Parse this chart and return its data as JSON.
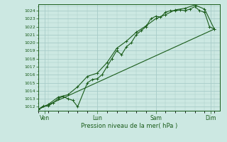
{
  "xlabel": "Pression niveau de la mer( hPa )",
  "bg_color": "#cce8e2",
  "line_color": "#1a5c1a",
  "grid_color": "#a8ccc8",
  "ylim": [
    1011.5,
    1024.8
  ],
  "xlim": [
    0,
    9.3
  ],
  "day_labels": [
    "Ven",
    "Lun",
    "Sam",
    "Dim"
  ],
  "day_positions": [
    0.3,
    3.0,
    6.0,
    8.8
  ],
  "series1_x": [
    0.0,
    0.25,
    0.5,
    0.75,
    1.0,
    1.25,
    1.5,
    1.75,
    2.0,
    2.5,
    2.75,
    3.0,
    3.25,
    3.5,
    3.75,
    4.0,
    4.25,
    4.5,
    4.75,
    5.0,
    5.25,
    5.5,
    5.75,
    6.0,
    6.25,
    6.5,
    6.75,
    7.0,
    7.25,
    7.5,
    7.75,
    8.0,
    8.25,
    8.5,
    8.75,
    9.0
  ],
  "series1_y": [
    1011.7,
    1012.1,
    1012.1,
    1012.5,
    1013.0,
    1013.3,
    1013.0,
    1012.8,
    1012.0,
    1015.0,
    1015.4,
    1015.5,
    1016.0,
    1017.0,
    1018.0,
    1019.0,
    1018.5,
    1019.5,
    1020.0,
    1021.0,
    1021.5,
    1022.0,
    1023.0,
    1023.3,
    1023.2,
    1023.8,
    1024.0,
    1024.0,
    1024.1,
    1024.0,
    1024.2,
    1024.5,
    1024.0,
    1023.8,
    1022.0,
    1021.7
  ],
  "series2_x": [
    0.0,
    0.5,
    1.0,
    1.5,
    2.0,
    2.5,
    3.0,
    3.5,
    4.0,
    4.5,
    5.0,
    5.5,
    6.0,
    6.5,
    7.0,
    7.5,
    8.0,
    8.5,
    9.0
  ],
  "series2_y": [
    1011.7,
    1012.3,
    1013.2,
    1013.5,
    1014.5,
    1015.8,
    1016.2,
    1017.5,
    1019.3,
    1020.2,
    1021.3,
    1022.1,
    1023.0,
    1023.5,
    1024.1,
    1024.3,
    1024.7,
    1024.2,
    1021.7
  ],
  "trend_x": [
    0.0,
    9.0
  ],
  "trend_y": [
    1011.7,
    1021.7
  ],
  "yticks": [
    1012,
    1013,
    1014,
    1015,
    1016,
    1017,
    1018,
    1019,
    1020,
    1021,
    1022,
    1023,
    1024
  ]
}
